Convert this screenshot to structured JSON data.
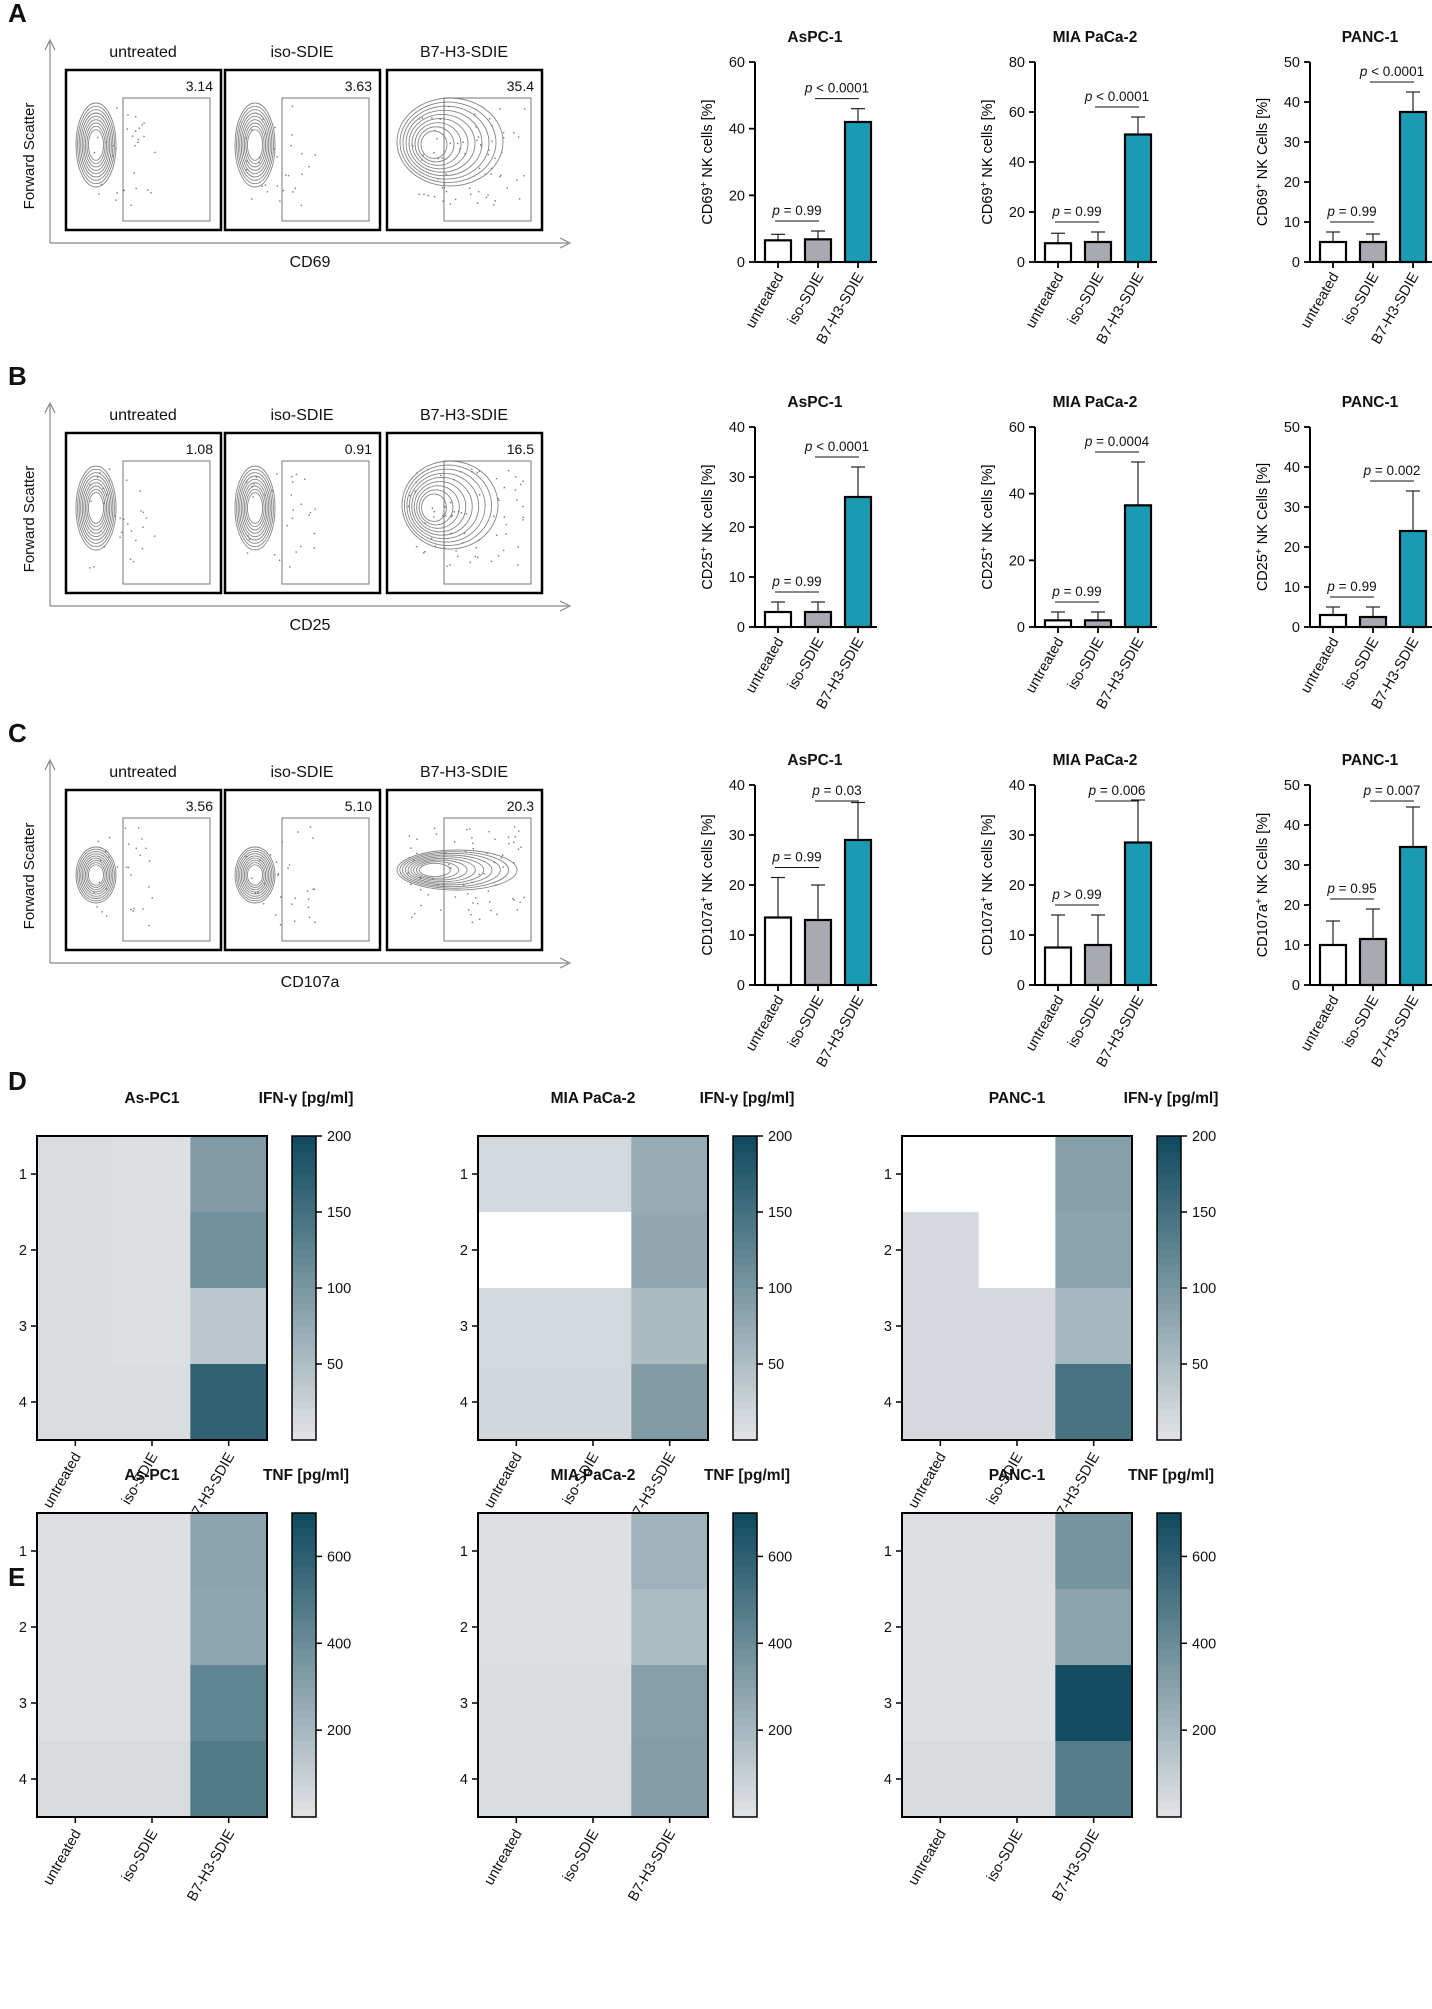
{
  "colors": {
    "untreated": "#ffffff",
    "iso": "#a9a9b1",
    "b7": "#1b9bb3",
    "heat_low": "#e6e6e8",
    "heat_high": "#114b5f",
    "flow_line": "#707070",
    "axis": "#000000"
  },
  "flow_panels": [
    {
      "panel_label": "A",
      "marker": "CD69",
      "yaxis": "Forward Scatter",
      "conditions": [
        "untreated",
        "iso-SDIE",
        "B7-H3-SDIE"
      ],
      "percentages": [
        "3.14",
        "3.63",
        "35.4"
      ]
    },
    {
      "panel_label": "B",
      "marker": "CD25",
      "yaxis": "Forward Scatter",
      "conditions": [
        "untreated",
        "iso-SDIE",
        "B7-H3-SDIE"
      ],
      "percentages": [
        "1.08",
        "0.91",
        "16.5"
      ]
    },
    {
      "panel_label": "C",
      "marker": "CD107a",
      "yaxis": "Forward Scatter",
      "conditions": [
        "untreated",
        "iso-SDIE",
        "B7-H3-SDIE"
      ],
      "percentages": [
        "3.56",
        "5.10",
        "20.3"
      ]
    }
  ],
  "chart_data": [
    {
      "type": "bar",
      "row": 0,
      "title": "AsPC-1",
      "ylabel_main": "CD69",
      "ylabel_rest": " NK cells [%]",
      "ylim": [
        0,
        60
      ],
      "ticks": [
        0,
        20,
        40,
        60
      ],
      "categories": [
        "untreated",
        "iso-SDIE",
        "B7-H3-SDIE"
      ],
      "values": [
        6.5,
        6.8,
        42
      ],
      "errors": [
        1.8,
        2.5,
        4
      ],
      "pvals": [
        "p = 0.99",
        "p < 0.0001"
      ]
    },
    {
      "type": "bar",
      "row": 0,
      "title": "MIA PaCa-2",
      "ylabel_main": "CD69",
      "ylabel_rest": " NK cells [%]",
      "ylim": [
        0,
        80
      ],
      "ticks": [
        0,
        20,
        40,
        60,
        80
      ],
      "categories": [
        "untreated",
        "iso-SDIE",
        "B7-H3-SDIE"
      ],
      "values": [
        7.5,
        8,
        51
      ],
      "errors": [
        4,
        4,
        7
      ],
      "pvals": [
        "p = 0.99",
        "p < 0.0001"
      ]
    },
    {
      "type": "bar",
      "row": 0,
      "title": "PANC-1",
      "ylabel_main": "CD69",
      "ylabel_rest": " NK Cells [%]",
      "ylim": [
        0,
        50
      ],
      "ticks": [
        0,
        10,
        20,
        30,
        40,
        50
      ],
      "categories": [
        "untreated",
        "iso-SDIE",
        "B7-H3-SDIE"
      ],
      "values": [
        5,
        5,
        37.5
      ],
      "errors": [
        2.5,
        2,
        5
      ],
      "pvals": [
        "p = 0.99",
        "p < 0.0001"
      ]
    },
    {
      "type": "bar",
      "row": 1,
      "title": "AsPC-1",
      "ylabel_main": "CD25",
      "ylabel_rest": " NK cells [%]",
      "ylim": [
        0,
        40
      ],
      "ticks": [
        0,
        10,
        20,
        30,
        40
      ],
      "categories": [
        "untreated",
        "iso-SDIE",
        "B7-H3-SDIE"
      ],
      "values": [
        3,
        3,
        26
      ],
      "errors": [
        2,
        2,
        6
      ],
      "pvals": [
        "p = 0.99",
        "p < 0.0001"
      ]
    },
    {
      "type": "bar",
      "row": 1,
      "title": "MIA PaCa-2",
      "ylabel_main": "CD25",
      "ylabel_rest": " NK cells [%]",
      "ylim": [
        0,
        60
      ],
      "ticks": [
        0,
        20,
        40,
        60
      ],
      "categories": [
        "untreated",
        "iso-SDIE",
        "B7-H3-SDIE"
      ],
      "values": [
        2,
        2,
        36.5
      ],
      "errors": [
        2.5,
        2.5,
        13
      ],
      "pvals": [
        "p = 0.99",
        "p = 0.0004"
      ]
    },
    {
      "type": "bar",
      "row": 1,
      "title": "PANC-1",
      "ylabel_main": "CD25",
      "ylabel_rest": " NK Cells [%]",
      "ylim": [
        0,
        50
      ],
      "ticks": [
        0,
        10,
        20,
        30,
        40,
        50
      ],
      "categories": [
        "untreated",
        "iso-SDIE",
        "B7-H3-SDIE"
      ],
      "values": [
        3,
        2.5,
        24
      ],
      "errors": [
        2,
        2.5,
        10
      ],
      "pvals": [
        "p = 0.99",
        "p = 0.002"
      ]
    },
    {
      "type": "bar",
      "row": 2,
      "title": "AsPC-1",
      "ylabel_main": "CD107a",
      "ylabel_rest": " NK cells [%]",
      "ylim": [
        0,
        40
      ],
      "ticks": [
        0,
        10,
        20,
        30,
        40
      ],
      "categories": [
        "untreated",
        "iso-SDIE",
        "B7-H3-SDIE"
      ],
      "values": [
        13.5,
        13,
        29
      ],
      "errors": [
        8,
        7,
        7.5
      ],
      "pvals": [
        "p = 0.99",
        "p = 0.03"
      ]
    },
    {
      "type": "bar",
      "row": 2,
      "title": "MIA PaCa-2",
      "ylabel_main": "CD107a",
      "ylabel_rest": " NK cells [%]",
      "ylim": [
        0,
        40
      ],
      "ticks": [
        0,
        10,
        20,
        30,
        40
      ],
      "categories": [
        "untreated",
        "iso-SDIE",
        "B7-H3-SDIE"
      ],
      "values": [
        7.5,
        8,
        28.5
      ],
      "errors": [
        6.5,
        6,
        8.5
      ],
      "pvals": [
        "p > 0.99",
        "p = 0.006"
      ]
    },
    {
      "type": "bar",
      "row": 2,
      "title": "PANC-1",
      "ylabel_main": "CD107a",
      "ylabel_rest": " NK Cells [%]",
      "ylim": [
        0,
        50
      ],
      "ticks": [
        0,
        10,
        20,
        30,
        40,
        50
      ],
      "categories": [
        "untreated",
        "iso-SDIE",
        "B7-H3-SDIE"
      ],
      "values": [
        10,
        11.5,
        34.5
      ],
      "errors": [
        6,
        7.5,
        10
      ],
      "pvals": [
        "p = 0.95",
        "p = 0.007"
      ]
    },
    {
      "type": "heatmap",
      "panel": "D",
      "title": "As-PC1",
      "legend_title": "IFN-γ [pg/ml]",
      "vmax": 200,
      "ticks": [
        50,
        100,
        150,
        200
      ],
      "rows": [
        "1",
        "2",
        "3",
        "4"
      ],
      "columns": [
        "untreated",
        "iso-SDIE",
        "B7-H3-SDIE"
      ],
      "values": [
        [
          10,
          8,
          95
        ],
        [
          10,
          8,
          110
        ],
        [
          10,
          8,
          40
        ],
        [
          12,
          10,
          170
        ]
      ]
    },
    {
      "type": "heatmap",
      "panel": "D",
      "title": "MIA PaCa-2",
      "legend_title": "IFN-γ [pg/ml]",
      "vmax": 200,
      "ticks": [
        50,
        100,
        150,
        200
      ],
      "rows": [
        "1",
        "2",
        "3",
        "4"
      ],
      "columns": [
        "untreated",
        "iso-SDIE",
        "B7-H3-SDIE"
      ],
      "values": [
        [
          18,
          18,
          75
        ],
        [
          null,
          null,
          80
        ],
        [
          18,
          18,
          55
        ],
        [
          20,
          20,
          95
        ]
      ]
    },
    {
      "type": "heatmap",
      "panel": "D",
      "title": "PANC-1",
      "legend_title": "IFN-γ [pg/ml]",
      "vmax": 200,
      "ticks": [
        50,
        100,
        150,
        200
      ],
      "rows": [
        "1",
        "2",
        "3",
        "4"
      ],
      "columns": [
        "untreated",
        "iso-SDIE",
        "B7-H3-SDIE"
      ],
      "values": [
        [
          null,
          null,
          90
        ],
        [
          15,
          null,
          85
        ],
        [
          15,
          15,
          60
        ],
        [
          15,
          15,
          150
        ]
      ]
    },
    {
      "type": "heatmap",
      "panel": "E",
      "title": "As-PC1",
      "legend_title": "TNF [pg/ml]",
      "vmax": 700,
      "ticks": [
        200,
        400,
        600
      ],
      "rows": [
        "1",
        "2",
        "3",
        "4"
      ],
      "columns": [
        "untreated",
        "iso-SDIE",
        "B7-H3-SDIE"
      ],
      "values": [
        [
          30,
          30,
          300
        ],
        [
          30,
          30,
          290
        ],
        [
          30,
          30,
          440
        ],
        [
          50,
          50,
          490
        ]
      ]
    },
    {
      "type": "heatmap",
      "panel": "E",
      "title": "MIA PaCa-2",
      "legend_title": "TNF [pg/ml]",
      "vmax": 700,
      "ticks": [
        200,
        400,
        600
      ],
      "rows": [
        "1",
        "2",
        "3",
        "4"
      ],
      "columns": [
        "untreated",
        "iso-SDIE",
        "B7-H3-SDIE"
      ],
      "values": [
        [
          30,
          30,
          230
        ],
        [
          30,
          30,
          190
        ],
        [
          35,
          35,
          320
        ],
        [
          40,
          40,
          330
        ]
      ]
    },
    {
      "type": "heatmap",
      "panel": "E",
      "title": "PANC-1",
      "legend_title": "TNF [pg/ml]",
      "vmax": 700,
      "ticks": [
        200,
        400,
        600
      ],
      "rows": [
        "1",
        "2",
        "3",
        "4"
      ],
      "columns": [
        "untreated",
        "iso-SDIE",
        "B7-H3-SDIE"
      ],
      "values": [
        [
          30,
          30,
          370
        ],
        [
          30,
          30,
          300
        ],
        [
          30,
          30,
          690
        ],
        [
          50,
          50,
          480
        ]
      ]
    }
  ],
  "heat_panel_labels": [
    "D",
    "E"
  ]
}
